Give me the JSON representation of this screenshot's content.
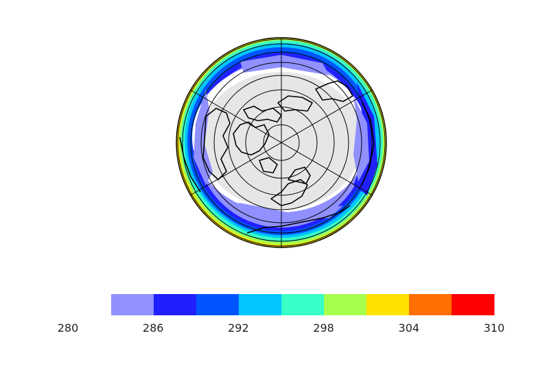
{
  "chart_data": {
    "type": "heatmap",
    "projection": "north-polar-orthographic",
    "title": "",
    "colorbar": {
      "orientation": "horizontal",
      "bins": [
        {
          "from": 283,
          "to": 286,
          "color": "#9090ff"
        },
        {
          "from": 286,
          "to": 289,
          "color": "#2020ff"
        },
        {
          "from": 289,
          "to": 292,
          "color": "#0055ff"
        },
        {
          "from": 292,
          "to": 295,
          "color": "#00c5ff"
        },
        {
          "from": 295,
          "to": 298,
          "color": "#37ffc7"
        },
        {
          "from": 298,
          "to": 301,
          "color": "#a6ff4c"
        },
        {
          "from": 301,
          "to": 304,
          "color": "#ffe100"
        },
        {
          "from": 304,
          "to": 307,
          "color": "#ff6e00"
        },
        {
          "from": 307,
          "to": 310,
          "color": "#ff0000"
        }
      ],
      "tick_values": [
        280,
        286,
        292,
        298,
        304,
        310
      ],
      "tick_labels": [
        "280",
        "286",
        "292",
        "298",
        "304",
        "310"
      ]
    },
    "below_range_color": "#e6e6e6",
    "graticule": {
      "parallels": "every 10°",
      "meridians": "every 60°"
    }
  }
}
